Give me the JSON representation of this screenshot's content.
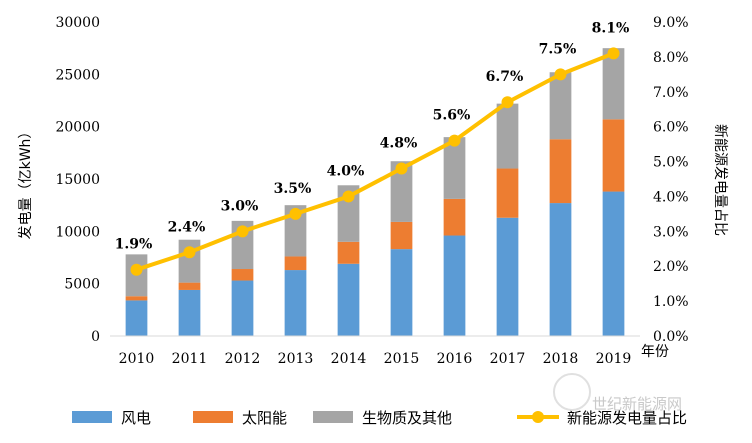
{
  "chart_data": {
    "type": "bar",
    "subtype": "stacked-bar-with-line",
    "categories": [
      "2010",
      "2011",
      "2012",
      "2013",
      "2014",
      "2015",
      "2016",
      "2017",
      "2018",
      "2019"
    ],
    "series": [
      {
        "name": "风电",
        "kind": "bar",
        "axis": "left",
        "color": "#5b9bd5",
        "values": [
          3400,
          4400,
          5300,
          6300,
          6900,
          8300,
          9600,
          11300,
          12700,
          13800
        ]
      },
      {
        "name": "太阳能",
        "kind": "bar",
        "axis": "left",
        "color": "#ed7d31",
        "values": [
          400,
          700,
          1100,
          1300,
          2100,
          2600,
          3500,
          4700,
          6100,
          6900
        ]
      },
      {
        "name": "生物质及其他",
        "kind": "bar",
        "axis": "left",
        "color": "#a5a5a5",
        "values": [
          4000,
          4100,
          4600,
          4900,
          5400,
          5800,
          5900,
          6200,
          6400,
          6800
        ]
      },
      {
        "name": "新能源发电量占比",
        "kind": "line",
        "axis": "right",
        "color": "#ffc000",
        "values": [
          1.9,
          2.4,
          3.0,
          3.5,
          4.0,
          4.8,
          5.6,
          6.7,
          7.5,
          8.1
        ],
        "labels": [
          "1.9%",
          "2.4%",
          "3.0%",
          "3.5%",
          "4.0%",
          "4.8%",
          "5.6%",
          "6.7%",
          "7.5%",
          "8.1%"
        ]
      }
    ],
    "ylabel": "发电量（亿kWh）",
    "y2label": "新能源发电量占比",
    "xunit": "年份",
    "ylim": [
      0,
      30000
    ],
    "y2lim": [
      0,
      9.0
    ],
    "yticks": [
      "0",
      "5000",
      "10000",
      "15000",
      "20000",
      "25000",
      "30000"
    ],
    "y2ticks": [
      "0.0%",
      "1.0%",
      "2.0%",
      "3.0%",
      "4.0%",
      "5.0%",
      "6.0%",
      "7.0%",
      "8.0%",
      "9.0%"
    ],
    "legend_position": "bottom",
    "grid": false
  },
  "watermark": {
    "text": "世纪新能源网"
  }
}
